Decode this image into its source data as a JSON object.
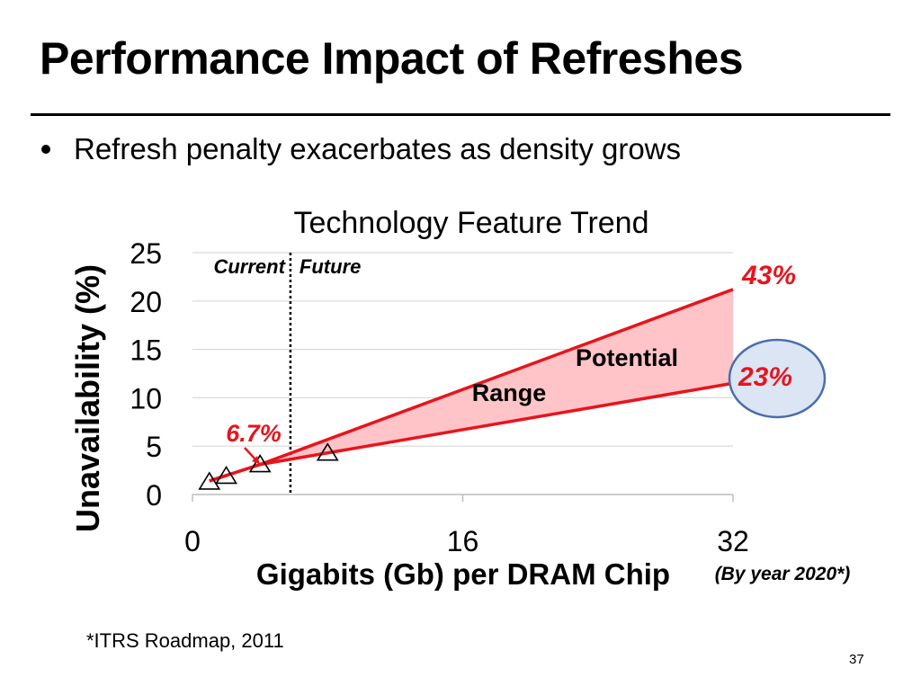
{
  "slide": {
    "title": "Performance Impact of Refreshes",
    "bullet": "Refresh penalty exacerbates as density grows",
    "footnote": "*ITRS Roadmap, 2011",
    "page_number": "37"
  },
  "chart_data": {
    "type": "line",
    "title": "Technology Feature Trend",
    "xlabel": "Gigabits (Gb) per DRAM Chip",
    "xlabel_note": "(By year 2020*)",
    "ylabel": "Unavailability (%)",
    "xlim": [
      0,
      32
    ],
    "ylim": [
      0,
      25
    ],
    "x_ticks": [
      0,
      16,
      32
    ],
    "y_ticks": [
      0,
      5,
      10,
      15,
      20,
      25
    ],
    "grid": true,
    "divider": {
      "x": 5.8,
      "left_label": "Current",
      "right_label": "Future"
    },
    "series": [
      {
        "name": "upper",
        "points": [
          [
            1,
            1.4
          ],
          [
            4,
            3.1
          ],
          [
            32,
            21.2
          ]
        ]
      },
      {
        "name": "lower",
        "points": [
          [
            1,
            1.4
          ],
          [
            4,
            3.1
          ],
          [
            32,
            11.5
          ]
        ]
      }
    ],
    "measured_points": [
      [
        1,
        1.4
      ],
      [
        2,
        2.0
      ],
      [
        4,
        3.2
      ],
      [
        8,
        4.4
      ]
    ],
    "annotations": {
      "current_value": "6.7%",
      "upper_value": "43%",
      "lower_value": "23%",
      "range_label_1": "Potential",
      "range_label_2": "Range"
    },
    "colors": {
      "accent": "#e8141c",
      "fill": "#ffc4c8",
      "circle_fill": "#dbe5f4",
      "circle_stroke": "#4a6eab",
      "grid": "#d9d9d9"
    }
  }
}
